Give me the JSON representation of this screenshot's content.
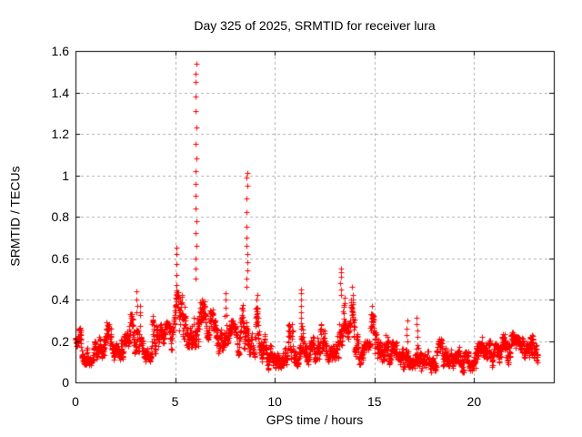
{
  "colors": {
    "marker": "#ff0000",
    "grid": "#b0b0b0",
    "axis": "#000000",
    "background": "#ffffff",
    "text": "#000000"
  },
  "chart_data": {
    "type": "scatter",
    "title": "Day 325 of 2025, SRMTID for receiver lura",
    "xlabel": "GPS time / hours",
    "ylabel": "SRMTID / TECUs",
    "xlim": [
      0,
      24
    ],
    "ylim": [
      0,
      1.6
    ],
    "xticks": [
      0,
      5,
      10,
      15,
      20
    ],
    "xtick_labels": [
      "0",
      "5",
      "10",
      "15",
      "20"
    ],
    "yticks": [
      0,
      0.2,
      0.4,
      0.6,
      0.8,
      1.0,
      1.2,
      1.4,
      1.6
    ],
    "ytick_labels": [
      "0",
      "0.2",
      "0.4",
      "0.6",
      "0.8",
      "1",
      "1.2",
      "1.4",
      "1.6"
    ],
    "grid": true,
    "legend": false,
    "marker": "plus",
    "marker_size_px": 7,
    "points_per_hour": 120,
    "bands": [
      [
        0.0,
        0.3,
        0.14,
        0.27
      ],
      [
        0.3,
        0.6,
        0.09,
        0.2
      ],
      [
        0.6,
        0.9,
        0.06,
        0.14
      ],
      [
        0.9,
        1.2,
        0.1,
        0.2
      ],
      [
        1.2,
        1.5,
        0.12,
        0.24
      ],
      [
        1.5,
        1.8,
        0.13,
        0.29
      ],
      [
        1.8,
        2.1,
        0.1,
        0.2
      ],
      [
        2.1,
        2.4,
        0.11,
        0.22
      ],
      [
        2.4,
        2.7,
        0.12,
        0.26
      ],
      [
        2.7,
        3.0,
        0.14,
        0.33
      ],
      [
        3.0,
        3.25,
        0.15,
        0.44
      ],
      [
        3.25,
        3.55,
        0.1,
        0.22
      ],
      [
        3.55,
        3.8,
        0.1,
        0.2
      ],
      [
        3.8,
        4.1,
        0.14,
        0.37
      ],
      [
        4.1,
        4.4,
        0.12,
        0.28
      ],
      [
        4.4,
        4.7,
        0.14,
        0.3
      ],
      [
        4.7,
        5.0,
        0.16,
        0.35
      ],
      [
        5.0,
        5.15,
        0.2,
        0.45
      ],
      [
        5.15,
        5.5,
        0.16,
        0.42
      ],
      [
        5.5,
        5.8,
        0.17,
        0.4
      ],
      [
        5.8,
        6.2,
        0.17,
        0.45
      ],
      [
        6.2,
        6.5,
        0.16,
        0.4
      ],
      [
        6.5,
        6.9,
        0.18,
        0.35
      ],
      [
        6.9,
        7.2,
        0.14,
        0.3
      ],
      [
        7.2,
        7.45,
        0.16,
        0.35
      ],
      [
        7.45,
        7.6,
        0.18,
        0.43
      ],
      [
        7.6,
        7.9,
        0.14,
        0.3
      ],
      [
        7.9,
        8.2,
        0.13,
        0.28
      ],
      [
        8.2,
        8.5,
        0.16,
        0.4
      ],
      [
        8.5,
        8.7,
        0.18,
        0.45
      ],
      [
        8.7,
        9.0,
        0.12,
        0.28
      ],
      [
        9.0,
        9.2,
        0.13,
        0.4
      ],
      [
        9.2,
        9.5,
        0.1,
        0.25
      ],
      [
        9.5,
        9.8,
        0.05,
        0.18
      ],
      [
        9.8,
        10.2,
        0.04,
        0.14
      ],
      [
        10.2,
        10.5,
        0.07,
        0.18
      ],
      [
        10.5,
        10.9,
        0.09,
        0.28
      ],
      [
        10.9,
        11.2,
        0.08,
        0.2
      ],
      [
        11.2,
        11.45,
        0.1,
        0.3
      ],
      [
        11.45,
        11.8,
        0.09,
        0.22
      ],
      [
        11.8,
        12.2,
        0.1,
        0.22
      ],
      [
        12.2,
        12.6,
        0.1,
        0.28
      ],
      [
        12.6,
        13.0,
        0.1,
        0.22
      ],
      [
        13.0,
        13.2,
        0.12,
        0.3
      ],
      [
        13.2,
        13.5,
        0.18,
        0.52
      ],
      [
        13.5,
        13.8,
        0.12,
        0.3
      ],
      [
        13.8,
        14.0,
        0.13,
        0.4
      ],
      [
        14.0,
        14.4,
        0.09,
        0.24
      ],
      [
        14.4,
        14.8,
        0.08,
        0.2
      ],
      [
        14.8,
        15.0,
        0.1,
        0.33
      ],
      [
        15.0,
        15.4,
        0.09,
        0.24
      ],
      [
        15.4,
        15.7,
        0.1,
        0.3
      ],
      [
        15.7,
        16.1,
        0.07,
        0.2
      ],
      [
        16.1,
        16.5,
        0.06,
        0.17
      ],
      [
        16.5,
        16.7,
        0.08,
        0.27
      ],
      [
        16.7,
        17.0,
        0.07,
        0.19
      ],
      [
        17.0,
        17.35,
        0.08,
        0.28
      ],
      [
        17.35,
        17.7,
        0.05,
        0.15
      ],
      [
        17.7,
        18.1,
        0.03,
        0.12
      ],
      [
        18.1,
        18.9,
        0.08,
        0.21
      ],
      [
        18.9,
        19.4,
        0.07,
        0.17
      ],
      [
        19.4,
        19.9,
        0.04,
        0.15
      ],
      [
        19.9,
        20.4,
        0.07,
        0.19
      ],
      [
        20.4,
        20.9,
        0.08,
        0.22
      ],
      [
        20.9,
        21.4,
        0.07,
        0.19
      ],
      [
        21.4,
        22.0,
        0.09,
        0.24
      ],
      [
        22.0,
        22.5,
        0.09,
        0.22
      ],
      [
        22.5,
        22.8,
        0.07,
        0.19
      ],
      [
        22.8,
        23.0,
        0.09,
        0.23
      ],
      [
        23.0,
        23.2,
        0.07,
        0.18
      ]
    ],
    "spike_columns": [
      {
        "x": 3.07,
        "values": [
          0.34,
          0.37,
          0.4,
          0.44
        ]
      },
      {
        "x": 5.05,
        "values": [
          0.38,
          0.42,
          0.47,
          0.52,
          0.57,
          0.62,
          0.65
        ]
      },
      {
        "x": 6.03,
        "values": [
          0.5,
          0.55,
          0.6,
          0.66,
          0.72,
          0.78,
          0.84,
          0.9,
          0.96,
          1.02,
          1.08,
          1.15,
          1.23,
          1.31,
          1.38,
          1.45,
          1.49,
          1.54
        ]
      },
      {
        "x": 7.52,
        "values": [
          0.32,
          0.36,
          0.4,
          0.43
        ]
      },
      {
        "x": 8.59,
        "values": [
          0.46,
          0.5,
          0.54,
          0.58,
          0.62,
          0.66,
          0.7,
          0.75,
          0.82,
          0.89,
          0.95,
          0.99,
          1.01
        ]
      },
      {
        "x": 9.1,
        "values": [
          0.28,
          0.32,
          0.36,
          0.4,
          0.42
        ]
      },
      {
        "x": 11.32,
        "values": [
          0.31,
          0.34,
          0.37,
          0.4,
          0.43,
          0.45
        ]
      },
      {
        "x": 13.32,
        "values": [
          0.42,
          0.45,
          0.48,
          0.51,
          0.53,
          0.55
        ]
      },
      {
        "x": 13.9,
        "values": [
          0.3,
          0.34,
          0.38,
          0.42,
          0.46
        ]
      },
      {
        "x": 14.9,
        "values": [
          0.24,
          0.28,
          0.32,
          0.37
        ]
      },
      {
        "x": 16.62,
        "values": [
          0.2,
          0.23,
          0.26,
          0.3
        ]
      },
      {
        "x": 17.15,
        "values": [
          0.22,
          0.25,
          0.28,
          0.31
        ]
      },
      {
        "x": 22.9,
        "values": [
          0.15,
          0.18,
          0.21,
          0.23
        ]
      }
    ]
  }
}
